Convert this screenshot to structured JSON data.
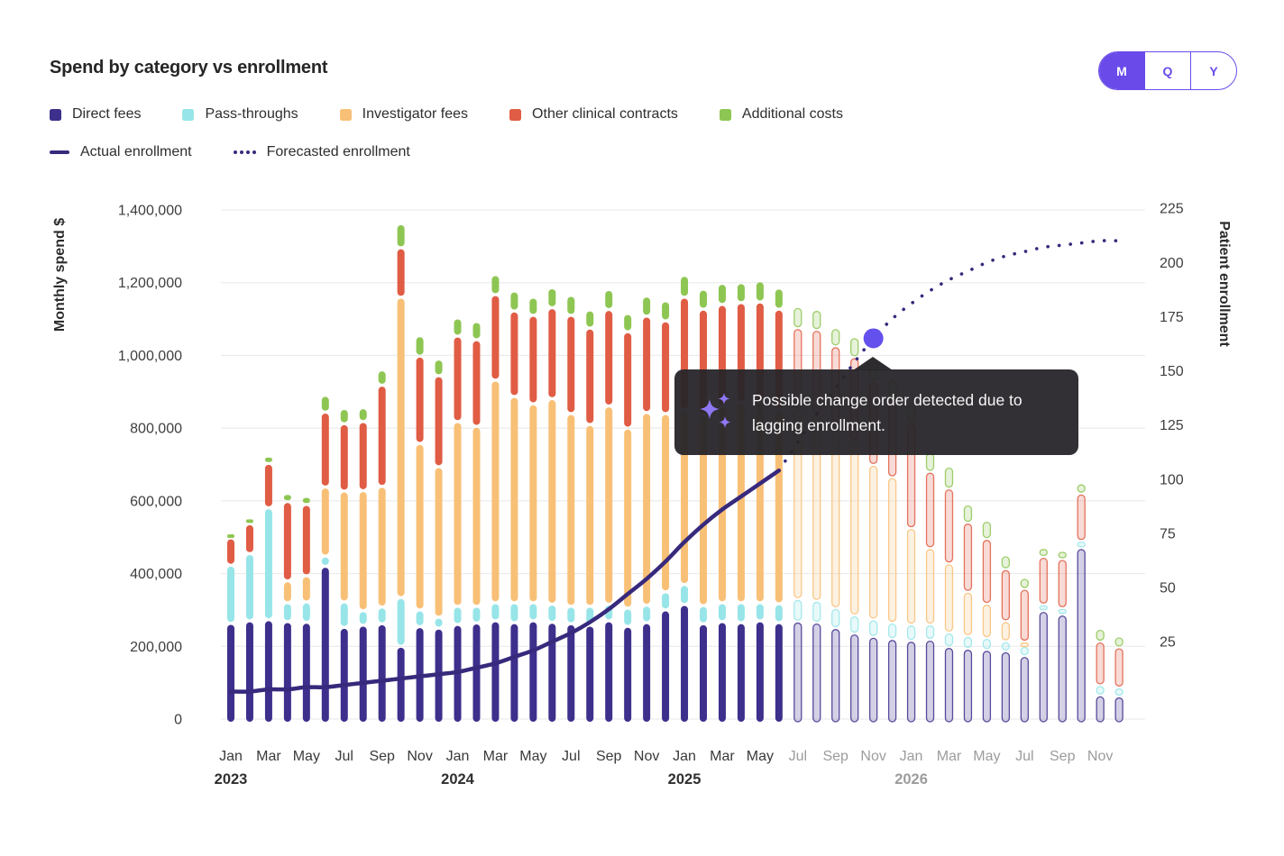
{
  "header": {
    "title": "Spend by category vs enrollment"
  },
  "controls": {
    "granularity": [
      {
        "label": "M",
        "selected": true
      },
      {
        "label": "Q",
        "selected": false
      },
      {
        "label": "Y",
        "selected": false
      }
    ]
  },
  "legend": {
    "categories": [
      {
        "label": "Direct fees",
        "color": "#3d2f8c"
      },
      {
        "label": "Pass-throughs",
        "color": "#97e5e8"
      },
      {
        "label": "Investigator fees",
        "color": "#f8c076"
      },
      {
        "label": "Other clinical contracts",
        "color": "#e05c44"
      },
      {
        "label": "Additional costs",
        "color": "#8ec653"
      }
    ],
    "lines": [
      {
        "label": "Actual enrollment",
        "style": "solid",
        "color": "#37297c"
      },
      {
        "label": "Forecasted enrollment",
        "style": "dotted",
        "color": "#37297c"
      }
    ]
  },
  "tooltip": {
    "icon": "sparkles-icon",
    "text": "Possible change order detected due to lagging enrollment."
  },
  "chart_data": {
    "type": "bar+line",
    "title": "Spend by category vs enrollment",
    "months": [
      "Jan 2023",
      "Feb 2023",
      "Mar 2023",
      "Apr 2023",
      "May 2023",
      "Jun 2023",
      "Jul 2023",
      "Aug 2023",
      "Sep 2023",
      "Oct 2023",
      "Nov 2023",
      "Dec 2023",
      "Jan 2024",
      "Feb 2024",
      "Mar 2024",
      "Apr 2024",
      "May 2024",
      "Jun 2024",
      "Jul 2024",
      "Aug 2024",
      "Sep 2024",
      "Oct 2024",
      "Nov 2024",
      "Dec 2024",
      "Jan 2025",
      "Feb 2025",
      "Mar 2025",
      "Apr 2025",
      "May 2025",
      "Jun 2025",
      "Jul 2025",
      "Aug 2025",
      "Sep 2025",
      "Oct 2025",
      "Nov 2025",
      "Dec 2025",
      "Jan 2026",
      "Feb 2026",
      "Mar 2026",
      "Apr 2026",
      "May 2026",
      "Jun 2026",
      "Jul 2026",
      "Aug 2026",
      "Sep 2026",
      "Oct 2026",
      "Nov 2026",
      "Dec 2026"
    ],
    "series": [
      {
        "name": "Direct fees",
        "color": "#3d2f8c",
        "values": [
          263000,
          270000,
          273000,
          268000,
          266000,
          420000,
          252000,
          258000,
          262000,
          200000,
          254000,
          250000,
          260000,
          264000,
          270000,
          265000,
          270000,
          266000,
          262000,
          258000,
          270000,
          255000,
          265000,
          300000,
          315000,
          262000,
          268000,
          265000,
          270000,
          265000,
          268000,
          265000,
          250000,
          235000,
          226000,
          220000,
          215000,
          218000,
          198000,
          193000,
          190000,
          186000,
          173000,
          297000,
          287000,
          470000,
          65000,
          62000
        ]
      },
      {
        "name": "Pass-throughs",
        "color": "#97e5e8",
        "values": [
          160000,
          185000,
          308000,
          52000,
          56000,
          28000,
          70000,
          40000,
          46000,
          134000,
          46000,
          30000,
          50000,
          46000,
          50000,
          55000,
          50000,
          50000,
          48000,
          52000,
          46000,
          50000,
          48000,
          50000,
          55000,
          50000,
          52000,
          55000,
          50000,
          52000,
          62000,
          60000,
          55000,
          50000,
          48000,
          45000,
          45000,
          42000,
          40000,
          35000,
          33000,
          28000,
          28000,
          18000,
          18000,
          20000,
          28000,
          25000
        ]
      },
      {
        "name": "Investigator fees",
        "color": "#f8c076",
        "values": [
          0,
          0,
          0,
          60000,
          72000,
          190000,
          305000,
          330000,
          332000,
          826000,
          458000,
          414000,
          508000,
          495000,
          612000,
          567000,
          547000,
          565000,
          530000,
          500000,
          545000,
          495000,
          530000,
          490000,
          480000,
          525000,
          540000,
          550000,
          555000,
          535000,
          520000,
          515000,
          490000,
          480000,
          425000,
          400000,
          265000,
          210000,
          190000,
          122000,
          94000,
          55000,
          12000,
          0,
          0,
          0,
          0,
          0
        ]
      },
      {
        "name": "Other clinical contracts",
        "color": "#e05c44",
        "values": [
          75000,
          82000,
          122000,
          218000,
          196000,
          206000,
          185000,
          190000,
          278000,
          136000,
          240000,
          250000,
          235000,
          238000,
          235000,
          235000,
          243000,
          250000,
          270000,
          265000,
          265000,
          265000,
          265000,
          255000,
          310000,
          290000,
          280000,
          275000,
          272000,
          275000,
          225000,
          230000,
          230000,
          230000,
          230000,
          215000,
          290000,
          210000,
          206000,
          190000,
          178000,
          143000,
          145000,
          131000,
          135000,
          130000,
          120000,
          110000
        ]
      },
      {
        "name": "Additional costs",
        "color": "#8ec653",
        "values": [
          14000,
          16000,
          20000,
          22000,
          22000,
          46000,
          42000,
          38000,
          42000,
          66000,
          56000,
          46000,
          50000,
          50000,
          55000,
          55000,
          50000,
          55000,
          55000,
          50000,
          55000,
          50000,
          55000,
          55000,
          60000,
          55000,
          58000,
          55000,
          58000,
          58000,
          58000,
          55000,
          50000,
          55000,
          60000,
          55000,
          50000,
          55000,
          60000,
          50000,
          50000,
          38000,
          30000,
          24000,
          22000,
          28000,
          35000,
          30000
        ]
      }
    ],
    "forecast_start_index": 30,
    "line_series": [
      {
        "name": "Actual enrollment",
        "style": "solid",
        "color": "#37297c",
        "start_index": 0,
        "values": [
          2,
          2,
          3,
          3,
          4,
          4,
          5,
          6,
          7,
          8,
          9,
          10,
          11,
          13,
          15,
          18,
          21,
          25,
          29,
          34,
          40,
          47,
          54,
          62,
          71,
          79,
          86,
          92,
          98,
          104
        ]
      },
      {
        "name": "Forecasted enrollment",
        "style": "dotted",
        "color": "#37297c",
        "start_index": 29,
        "values": [
          104,
          117,
          130,
          142,
          154,
          165,
          174,
          181,
          187,
          192,
          196,
          200,
          203,
          205,
          207,
          208,
          209,
          210,
          210
        ]
      }
    ],
    "highlight_point": {
      "label": "Nov 2025",
      "month_index": 34,
      "value": 165,
      "color": "#6450ec"
    },
    "y_left": {
      "label": "Monthly spend $",
      "min": 0,
      "max": 1400000,
      "tick_step": 200000
    },
    "y_right": {
      "label": "Patient enrollment",
      "tick_min": 25,
      "tick_max": 225,
      "tick_step": 25
    },
    "x_axis": {
      "muted_from_index": 30,
      "muted_color": "#9c9c9c",
      "label_color": "#3a3a3a",
      "years": [
        {
          "label": "2023",
          "month_index": 0,
          "muted": false
        },
        {
          "label": "2024",
          "month_index": 12,
          "muted": false
        },
        {
          "label": "2025",
          "month_index": 24,
          "muted": false
        },
        {
          "label": "2026",
          "month_index": 36,
          "muted": true
        }
      ]
    }
  }
}
